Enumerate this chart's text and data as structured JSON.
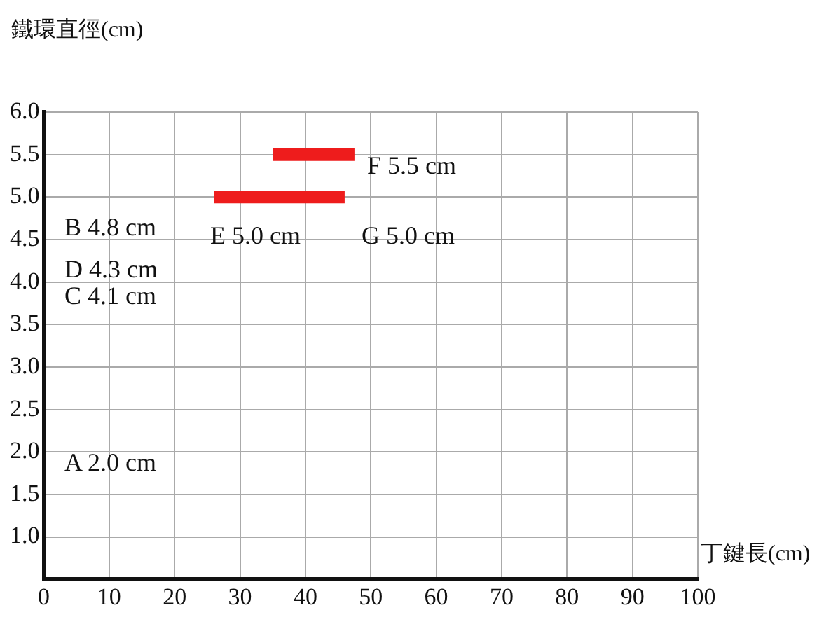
{
  "chart_data": {
    "type": "line",
    "xlabel": "丁鍵長(cm)",
    "ylabel": "鐵環直徑(cm)",
    "marker": "none",
    "series": [
      {
        "color": "#ee1c1c",
        "x": [
          35,
          47.5
        ],
        "values": [
          5.5,
          5.5
        ]
      },
      {
        "color": "#ee1c1c",
        "x": [
          26,
          46
        ],
        "values": [
          5.0,
          5.0
        ]
      }
    ],
    "xlim": [
      0,
      100
    ],
    "xticks": [
      0,
      10,
      20,
      30,
      40,
      50,
      60,
      70,
      80,
      90,
      100
    ],
    "ylim": [
      0.5,
      6.0
    ],
    "yticks": [
      {
        "value": 1,
        "label": "1.0"
      },
      {
        "value": 1.5,
        "label": "1.5"
      },
      {
        "value": 2,
        "label": "2.0"
      },
      {
        "value": 2.5,
        "label": "2.5"
      },
      {
        "value": 3,
        "label": "3.0"
      },
      {
        "value": 3.5,
        "label": "3.5"
      },
      {
        "value": 4,
        "label": "4.0"
      },
      {
        "value": 4.5,
        "label": "4.5"
      },
      {
        "value": 5,
        "label": "5.0"
      },
      {
        "value": 5.5,
        "label": "5.5"
      },
      {
        "value": 6,
        "label": "6.0"
      }
    ],
    "grid": true,
    "legend": false,
    "annotations": [
      "F 5.5 cm",
      "B 4.8 cm",
      "E 5.0 cm",
      "G 5.0 cm",
      "D 4.3 cm",
      "C 4.1 cm",
      "A 2.0 cm"
    ]
  }
}
